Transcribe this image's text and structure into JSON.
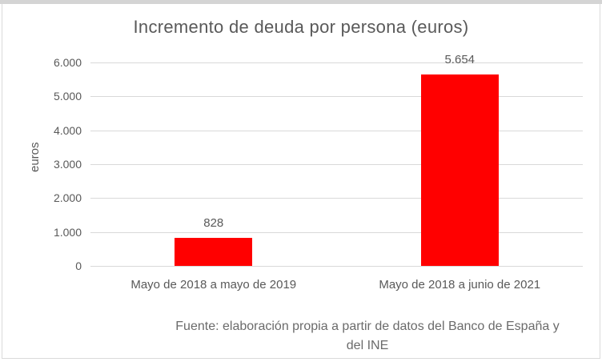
{
  "chart_data": {
    "type": "bar",
    "title": "Incremento de deuda por persona (euros)",
    "xlabel": "",
    "ylabel": "euros",
    "categories": [
      "Mayo de 2018 a mayo de 2019",
      "Mayo de 2018 a junio de 2021"
    ],
    "values": [
      828,
      5654
    ],
    "value_labels": [
      "828",
      "5.654"
    ],
    "ylim": [
      0,
      6000
    ],
    "ytick_values": [
      0,
      1000,
      2000,
      3000,
      4000,
      5000,
      6000
    ],
    "ytick_labels": [
      "0",
      "1.000",
      "2.000",
      "3.000",
      "4.000",
      "5.000",
      "6.000"
    ],
    "grid": true,
    "legend_position": "none",
    "bar_color": "#ff0000"
  },
  "footer": {
    "source_line1": "Fuente: elaboración propia a partir de datos del Banco de España y",
    "source_line2": "del INE"
  },
  "colors": {
    "bar": "#ff0000",
    "text": "#595959",
    "gridline": "#d9d9d9",
    "frame_border": "#dadada",
    "top_band": "#d4d4d4"
  }
}
